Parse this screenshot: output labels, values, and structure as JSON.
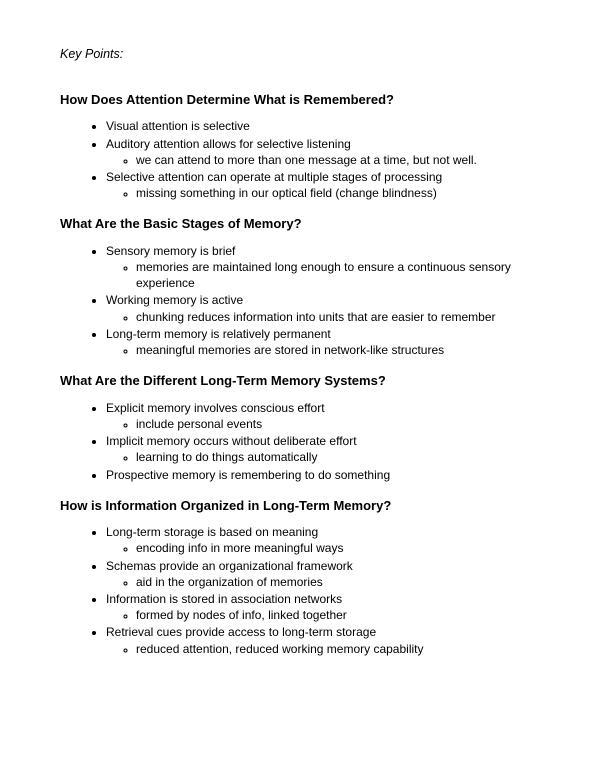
{
  "keyPointsLabel": "Key Points:",
  "sections": [
    {
      "heading": "How Does Attention Determine What is Remembered?",
      "items": [
        {
          "text": "Visual attention is selective",
          "sub": []
        },
        {
          "text": "Auditory attention allows for selective listening",
          "sub": [
            "we can attend to more than one message at a time, but not well."
          ]
        },
        {
          "text": "Selective attention can operate at multiple stages of processing",
          "sub": [
            "missing something in our optical field (change blindness)"
          ]
        }
      ]
    },
    {
      "heading": "What Are the Basic Stages of Memory?",
      "items": [
        {
          "text": "Sensory memory is brief",
          "sub": [
            "memories are maintained long enough to ensure a continuous sensory experience"
          ]
        },
        {
          "text": "Working memory is active",
          "sub": [
            "chunking reduces information into units that are easier to remember"
          ]
        },
        {
          "text": "Long-term memory is relatively permanent",
          "sub": [
            "meaningful memories are stored in network-like structures"
          ]
        }
      ]
    },
    {
      "heading": "What Are the Different Long-Term Memory Systems?",
      "items": [
        {
          "text": "Explicit memory involves conscious effort",
          "sub": [
            "include personal events"
          ]
        },
        {
          "text": "Implicit memory occurs without deliberate effort",
          "sub": [
            "learning to do things automatically"
          ]
        },
        {
          "text": "Prospective memory is remembering to do something",
          "sub": []
        }
      ]
    },
    {
      "heading": "How is Information Organized in Long-Term Memory?",
      "items": [
        {
          "text": "Long-term storage is based on meaning",
          "sub": [
            "encoding info in more meaningful ways"
          ]
        },
        {
          "text": "Schemas provide an organizational framework",
          "sub": [
            "aid in the organization of memories"
          ]
        },
        {
          "text": "Information is stored in association networks",
          "sub": [
            "formed by nodes of info, linked together"
          ]
        },
        {
          "text": "Retrieval cues provide access to long-term storage",
          "sub": [
            "reduced attention, reduced working memory capability"
          ]
        }
      ]
    }
  ]
}
